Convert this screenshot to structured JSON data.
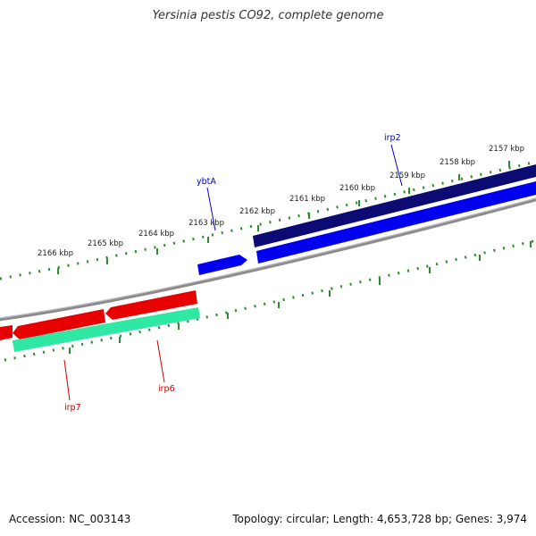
{
  "title": "Yersinia pestis CO92, complete genome",
  "footer": {
    "accession": "Accession: NC_003143",
    "summary": "Topology: circular; Length: 4,653,728 bp; Genes: 3,974"
  },
  "colors": {
    "background": "#ffffff",
    "backbone": "#8c8c8c",
    "tick": "#2e8b2e",
    "tick_label": "#222222",
    "forward_dark": "#0b0b73",
    "forward": "#0000ee",
    "reverse": "#e60000",
    "reverse_light": "#2ee8a4",
    "label_forward": "#0000cc",
    "label_reverse": "#cc0000"
  },
  "scale": {
    "unit": "kbp",
    "ticks": [
      "2157 kbp",
      "2158 kbp",
      "2159 kbp",
      "2160 kbp",
      "2161 kbp",
      "2162 kbp",
      "2163 kbp",
      "2164 kbp",
      "2165 kbp",
      "2166 kbp"
    ]
  },
  "features": [
    {
      "name": "ybtA",
      "strand": "forward",
      "labeled": true
    },
    {
      "name": "irp2",
      "strand": "forward",
      "labeled": true
    },
    {
      "name": "irp6",
      "strand": "reverse",
      "labeled": true
    },
    {
      "name": "irp7",
      "strand": "reverse",
      "labeled": true
    }
  ]
}
